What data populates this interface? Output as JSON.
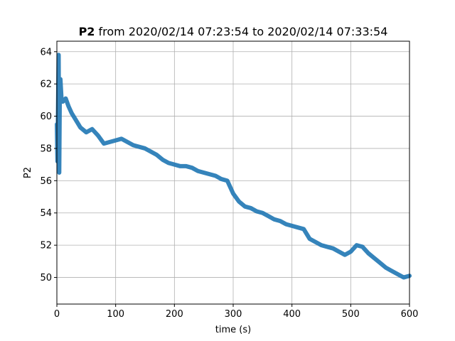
{
  "chart_data": {
    "type": "line",
    "title": {
      "bold": "P2",
      "rest": " from 2020/02/14 07:23:54 to 2020/02/14 07:33:54"
    },
    "xlabel": "time (s)",
    "ylabel": "P2",
    "xlim": [
      0,
      600
    ],
    "ylim": [
      48.35,
      64.65
    ],
    "xticks": [
      0,
      100,
      200,
      300,
      400,
      500,
      600
    ],
    "yticks": [
      50,
      52,
      54,
      56,
      58,
      60,
      62,
      64
    ],
    "grid": true,
    "colors": {
      "series": "#1f77b4",
      "grid": "#b0b0b0",
      "axes": "#000000"
    },
    "series": [
      {
        "name": "",
        "x": [
          0,
          1,
          2,
          3,
          4,
          5,
          6,
          8,
          10,
          15,
          20,
          25,
          30,
          40,
          50,
          60,
          70,
          80,
          90,
          100,
          110,
          120,
          130,
          140,
          150,
          160,
          170,
          180,
          190,
          200,
          210,
          220,
          230,
          240,
          250,
          260,
          270,
          280,
          290,
          300,
          310,
          320,
          330,
          340,
          350,
          360,
          370,
          380,
          390,
          400,
          410,
          420,
          430,
          440,
          450,
          460,
          470,
          480,
          490,
          500,
          510,
          520,
          530,
          540,
          550,
          560,
          570,
          580,
          590,
          600
        ],
        "y": [
          59.5,
          57.2,
          60.5,
          63.8,
          56.5,
          61.5,
          62.3,
          61.0,
          60.9,
          61.1,
          60.6,
          60.2,
          59.9,
          59.3,
          59.0,
          59.2,
          58.8,
          58.3,
          58.4,
          58.5,
          58.6,
          58.4,
          58.2,
          58.1,
          58.0,
          57.8,
          57.6,
          57.3,
          57.1,
          57.0,
          56.9,
          56.9,
          56.8,
          56.6,
          56.5,
          56.4,
          56.3,
          56.1,
          56.0,
          55.2,
          54.7,
          54.4,
          54.3,
          54.1,
          54.0,
          53.8,
          53.6,
          53.5,
          53.3,
          53.2,
          53.1,
          53.0,
          52.4,
          52.2,
          52.0,
          51.9,
          51.8,
          51.6,
          51.4,
          51.6,
          52.0,
          51.9,
          51.5,
          51.2,
          50.9,
          50.6,
          50.4,
          50.2,
          50.0,
          50.1
        ]
      }
    ]
  }
}
